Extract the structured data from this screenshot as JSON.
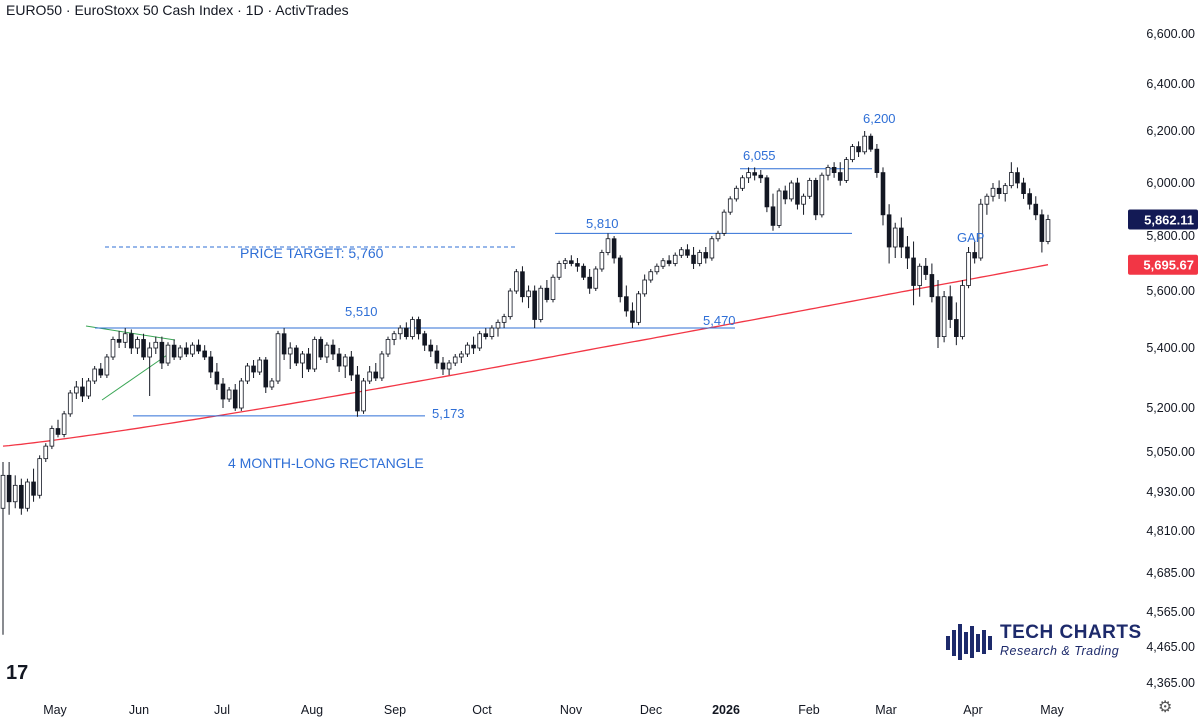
{
  "header": {
    "title": "EURO50 · EuroStoxx 50 Cash Index · 1D · ActivTrades"
  },
  "chart_data": {
    "type": "candlestick",
    "x_labels": [
      "May",
      "Jun",
      "Jul",
      "Aug",
      "Sep",
      "Oct",
      "Nov",
      "Dec",
      "2026",
      "Feb",
      "Mar",
      "Apr",
      "May"
    ],
    "y_ticks": [
      6600,
      6400,
      6200,
      6000,
      5800,
      5600,
      5400,
      5200,
      5050,
      4930,
      4810,
      4685,
      4565,
      4465,
      4365
    ],
    "y_tick_labels": [
      "6,600.00",
      "6,400.00",
      "6,200.00",
      "6,000.00",
      "5,800.00",
      "5,600.00",
      "5,400.00",
      "5,200.00",
      "5,050.00",
      "4,930.00",
      "4,810.00",
      "4,685.00",
      "4,565.00",
      "4,465.00",
      "4,365.00"
    ],
    "scale": "log",
    "last_price": {
      "value": 5862.11,
      "label": "5,862.11",
      "color": "#131a55"
    },
    "ma_value": {
      "value": 5695.67,
      "label": "5,695.67",
      "color": "#f23645"
    },
    "ma_color": "#f23645",
    "up_color": "#ffffff",
    "down_color": "#131722",
    "annotations": [
      {
        "text": "PRICE TARGET: 5,760",
        "value": 5760
      },
      {
        "text": "5,510",
        "value": 5510
      },
      {
        "text": "5,470",
        "value": 5470
      },
      {
        "text": "5,173",
        "value": 5173
      },
      {
        "text": "4 MONTH-LONG RECTANGLE"
      },
      {
        "text": "5,810",
        "value": 5810
      },
      {
        "text": "6,055",
        "value": 6055
      },
      {
        "text": "6,200",
        "value": 6200
      },
      {
        "text": "GAP"
      }
    ],
    "ohlc": [
      [
        4880,
        5020,
        4500,
        4980
      ],
      [
        4980,
        5020,
        4860,
        4900
      ],
      [
        4900,
        4980,
        4880,
        4950
      ],
      [
        4950,
        4970,
        4860,
        4880
      ],
      [
        4880,
        4970,
        4870,
        4960
      ],
      [
        4960,
        5000,
        4900,
        4920
      ],
      [
        4920,
        5040,
        4910,
        5030
      ],
      [
        5030,
        5080,
        5020,
        5070
      ],
      [
        5070,
        5140,
        5060,
        5130
      ],
      [
        5130,
        5160,
        5100,
        5110
      ],
      [
        5110,
        5190,
        5100,
        5180
      ],
      [
        5180,
        5260,
        5170,
        5250
      ],
      [
        5250,
        5290,
        5230,
        5270
      ],
      [
        5270,
        5300,
        5220,
        5240
      ],
      [
        5240,
        5300,
        5230,
        5290
      ],
      [
        5290,
        5340,
        5280,
        5330
      ],
      [
        5330,
        5350,
        5300,
        5310
      ],
      [
        5310,
        5380,
        5300,
        5370
      ],
      [
        5370,
        5440,
        5360,
        5430
      ],
      [
        5430,
        5460,
        5400,
        5420
      ],
      [
        5420,
        5470,
        5400,
        5450
      ],
      [
        5450,
        5465,
        5380,
        5400
      ],
      [
        5400,
        5440,
        5380,
        5430
      ],
      [
        5430,
        5450,
        5360,
        5370
      ],
      [
        5370,
        5420,
        5240,
        5400
      ],
      [
        5400,
        5440,
        5380,
        5420
      ],
      [
        5420,
        5440,
        5330,
        5350
      ],
      [
        5350,
        5420,
        5340,
        5410
      ],
      [
        5410,
        5430,
        5360,
        5370
      ],
      [
        5370,
        5410,
        5360,
        5400
      ],
      [
        5400,
        5420,
        5370,
        5380
      ],
      [
        5380,
        5420,
        5370,
        5410
      ],
      [
        5410,
        5430,
        5380,
        5390
      ],
      [
        5390,
        5410,
        5360,
        5370
      ],
      [
        5370,
        5390,
        5300,
        5320
      ],
      [
        5320,
        5350,
        5260,
        5280
      ],
      [
        5280,
        5300,
        5200,
        5230
      ],
      [
        5230,
        5270,
        5220,
        5260
      ],
      [
        5260,
        5280,
        5190,
        5200
      ],
      [
        5200,
        5300,
        5190,
        5290
      ],
      [
        5290,
        5350,
        5280,
        5340
      ],
      [
        5340,
        5360,
        5300,
        5320
      ],
      [
        5320,
        5370,
        5310,
        5360
      ],
      [
        5360,
        5370,
        5250,
        5270
      ],
      [
        5270,
        5300,
        5260,
        5290
      ],
      [
        5290,
        5460,
        5280,
        5450
      ],
      [
        5450,
        5470,
        5360,
        5380
      ],
      [
        5380,
        5420,
        5330,
        5400
      ],
      [
        5400,
        5410,
        5340,
        5350
      ],
      [
        5350,
        5390,
        5300,
        5380
      ],
      [
        5380,
        5400,
        5320,
        5330
      ],
      [
        5330,
        5440,
        5320,
        5430
      ],
      [
        5430,
        5440,
        5360,
        5370
      ],
      [
        5370,
        5420,
        5350,
        5410
      ],
      [
        5410,
        5430,
        5360,
        5380
      ],
      [
        5380,
        5400,
        5320,
        5340
      ],
      [
        5340,
        5380,
        5300,
        5370
      ],
      [
        5370,
        5390,
        5290,
        5310
      ],
      [
        5310,
        5340,
        5170,
        5190
      ],
      [
        5190,
        5300,
        5180,
        5290
      ],
      [
        5290,
        5340,
        5280,
        5320
      ],
      [
        5320,
        5350,
        5290,
        5300
      ],
      [
        5300,
        5390,
        5290,
        5380
      ],
      [
        5380,
        5440,
        5370,
        5430
      ],
      [
        5430,
        5460,
        5410,
        5450
      ],
      [
        5450,
        5480,
        5430,
        5470
      ],
      [
        5470,
        5490,
        5430,
        5440
      ],
      [
        5440,
        5510,
        5430,
        5500
      ],
      [
        5500,
        5510,
        5430,
        5450
      ],
      [
        5450,
        5460,
        5390,
        5410
      ],
      [
        5410,
        5430,
        5370,
        5390
      ],
      [
        5390,
        5410,
        5330,
        5350
      ],
      [
        5350,
        5370,
        5310,
        5330
      ],
      [
        5330,
        5360,
        5310,
        5350
      ],
      [
        5350,
        5380,
        5340,
        5370
      ],
      [
        5370,
        5390,
        5350,
        5380
      ],
      [
        5380,
        5420,
        5370,
        5410
      ],
      [
        5410,
        5440,
        5380,
        5400
      ],
      [
        5400,
        5460,
        5390,
        5450
      ],
      [
        5450,
        5470,
        5430,
        5440
      ],
      [
        5440,
        5480,
        5430,
        5470
      ],
      [
        5470,
        5500,
        5440,
        5490
      ],
      [
        5490,
        5520,
        5470,
        5510
      ],
      [
        5510,
        5610,
        5500,
        5600
      ],
      [
        5600,
        5680,
        5590,
        5670
      ],
      [
        5670,
        5690,
        5560,
        5580
      ],
      [
        5580,
        5620,
        5540,
        5600
      ],
      [
        5600,
        5620,
        5470,
        5500
      ],
      [
        5500,
        5620,
        5490,
        5610
      ],
      [
        5610,
        5640,
        5560,
        5570
      ],
      [
        5570,
        5660,
        5560,
        5650
      ],
      [
        5650,
        5710,
        5640,
        5700
      ],
      [
        5700,
        5720,
        5680,
        5710
      ],
      [
        5710,
        5730,
        5690,
        5700
      ],
      [
        5700,
        5720,
        5670,
        5690
      ],
      [
        5690,
        5700,
        5640,
        5650
      ],
      [
        5650,
        5680,
        5590,
        5610
      ],
      [
        5610,
        5690,
        5600,
        5680
      ],
      [
        5680,
        5750,
        5670,
        5740
      ],
      [
        5740,
        5810,
        5730,
        5790
      ],
      [
        5790,
        5800,
        5700,
        5720
      ],
      [
        5720,
        5730,
        5560,
        5580
      ],
      [
        5580,
        5620,
        5510,
        5530
      ],
      [
        5530,
        5560,
        5470,
        5490
      ],
      [
        5490,
        5600,
        5480,
        5590
      ],
      [
        5590,
        5660,
        5580,
        5640
      ],
      [
        5640,
        5680,
        5630,
        5670
      ],
      [
        5670,
        5700,
        5660,
        5690
      ],
      [
        5690,
        5720,
        5680,
        5710
      ],
      [
        5710,
        5730,
        5690,
        5700
      ],
      [
        5700,
        5740,
        5690,
        5730
      ],
      [
        5730,
        5760,
        5720,
        5750
      ],
      [
        5750,
        5770,
        5720,
        5730
      ],
      [
        5730,
        5760,
        5680,
        5700
      ],
      [
        5700,
        5750,
        5690,
        5740
      ],
      [
        5740,
        5760,
        5700,
        5720
      ],
      [
        5720,
        5800,
        5710,
        5790
      ],
      [
        5790,
        5820,
        5780,
        5810
      ],
      [
        5810,
        5900,
        5800,
        5890
      ],
      [
        5890,
        5950,
        5880,
        5940
      ],
      [
        5940,
        5990,
        5930,
        5980
      ],
      [
        5980,
        6030,
        5970,
        6020
      ],
      [
        6020,
        6060,
        6000,
        6040
      ],
      [
        6040,
        6060,
        6010,
        6030
      ],
      [
        6030,
        6050,
        6000,
        6020
      ],
      [
        6020,
        6030,
        5890,
        5910
      ],
      [
        5910,
        5960,
        5820,
        5840
      ],
      [
        5840,
        5980,
        5830,
        5970
      ],
      [
        5970,
        5990,
        5920,
        5940
      ],
      [
        5940,
        6010,
        5930,
        6000
      ],
      [
        6000,
        6020,
        5900,
        5920
      ],
      [
        5920,
        5960,
        5880,
        5950
      ],
      [
        5950,
        6020,
        5940,
        6010
      ],
      [
        6010,
        6020,
        5860,
        5880
      ],
      [
        5880,
        6040,
        5870,
        6030
      ],
      [
        6030,
        6070,
        6010,
        6060
      ],
      [
        6060,
        6080,
        6020,
        6040
      ],
      [
        6040,
        6080,
        5990,
        6010
      ],
      [
        6010,
        6100,
        6000,
        6090
      ],
      [
        6090,
        6150,
        6080,
        6140
      ],
      [
        6140,
        6160,
        6100,
        6120
      ],
      [
        6120,
        6200,
        6110,
        6180
      ],
      [
        6180,
        6190,
        6120,
        6130
      ],
      [
        6130,
        6150,
        6020,
        6040
      ],
      [
        6040,
        6060,
        5840,
        5880
      ],
      [
        5880,
        5920,
        5700,
        5760
      ],
      [
        5760,
        5850,
        5720,
        5830
      ],
      [
        5830,
        5870,
        5720,
        5760
      ],
      [
        5760,
        5800,
        5680,
        5720
      ],
      [
        5720,
        5780,
        5550,
        5620
      ],
      [
        5620,
        5700,
        5580,
        5690
      ],
      [
        5690,
        5720,
        5640,
        5660
      ],
      [
        5660,
        5700,
        5560,
        5580
      ],
      [
        5580,
        5640,
        5400,
        5440
      ],
      [
        5440,
        5600,
        5420,
        5580
      ],
      [
        5580,
        5620,
        5470,
        5500
      ],
      [
        5500,
        5560,
        5410,
        5440
      ],
      [
        5440,
        5640,
        5430,
        5620
      ],
      [
        5620,
        5760,
        5610,
        5740
      ],
      [
        5740,
        5780,
        5700,
        5720
      ],
      [
        5720,
        5940,
        5710,
        5920
      ],
      [
        5920,
        5960,
        5880,
        5950
      ],
      [
        5950,
        6000,
        5930,
        5980
      ],
      [
        5980,
        6010,
        5940,
        5960
      ],
      [
        5960,
        6000,
        5930,
        5990
      ],
      [
        5990,
        6080,
        5980,
        6040
      ],
      [
        6040,
        6060,
        5980,
        6000
      ],
      [
        6000,
        6020,
        5940,
        5960
      ],
      [
        5960,
        5980,
        5900,
        5920
      ],
      [
        5920,
        5950,
        5860,
        5880
      ],
      [
        5880,
        5900,
        5740,
        5780
      ],
      [
        5780,
        5880,
        5770,
        5862.11
      ]
    ]
  },
  "branding": {
    "logo_title": "TECH CHARTS",
    "logo_subtitle": "Research & Trading",
    "platform_mark": "17"
  },
  "icons": {
    "settings": "settings-gear-icon",
    "platform": "tradingview-logo-icon",
    "brand": "tech-charts-logo-icon"
  }
}
